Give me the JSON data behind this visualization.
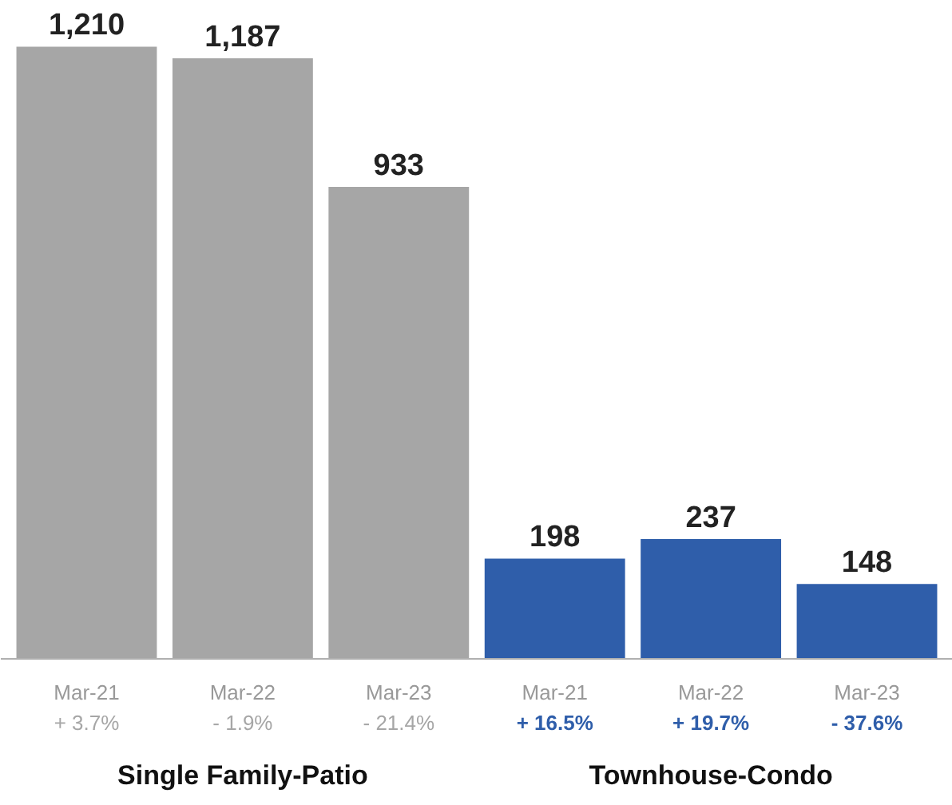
{
  "chart_data": {
    "type": "bar",
    "categories": [
      "Mar-21\n+ 3.7%",
      "Mar-22\n- 1.9%",
      "Mar-23\n- 21.4%",
      "Mar-21\n+ 16.5%",
      "Mar-22\n+ 19.7%",
      "Mar-23\n- 37.6%"
    ],
    "values": [
      1210,
      1187,
      933,
      198,
      237,
      148
    ],
    "colors": [
      "#a6a6a6",
      "#a6a6a6",
      "#a6a6a6",
      "#2f5eaa",
      "#2f5eaa",
      "#2f5eaa"
    ],
    "value_labels": [
      "1,210",
      "1,187",
      "933",
      "198",
      "237",
      "148"
    ],
    "annotations": [
      "Single Family-Patio",
      "Townhouse-Condo"
    ]
  }
}
